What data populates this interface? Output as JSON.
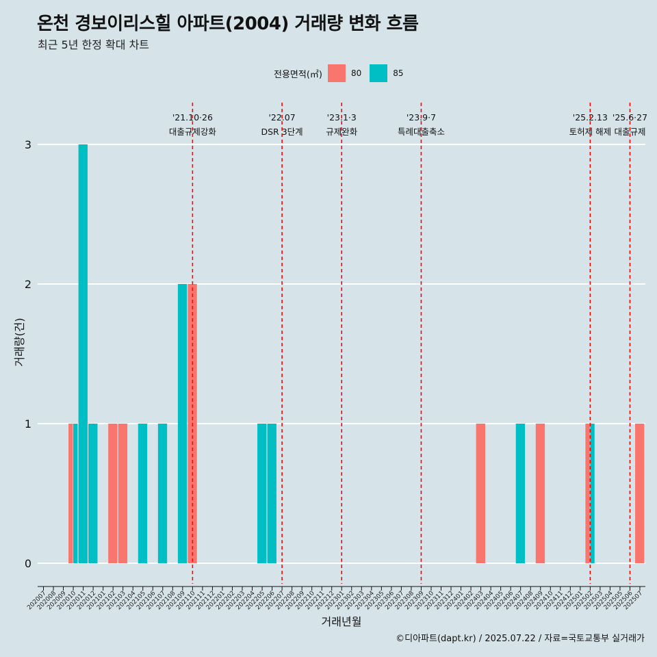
{
  "header": {
    "title": "온천 경보이리스힐 아파트(2004) 거래량 변화 흐름",
    "subtitle": "최근 5년 한정 확대 차트"
  },
  "legend": {
    "title": "전용면적(㎡)",
    "items": [
      {
        "label": "80",
        "color": "#f8766d"
      },
      {
        "label": "85",
        "color": "#00bfc4"
      }
    ]
  },
  "caption": "©디아파트(dapt.kr) / 2025.07.22 / 자료=국토교통부 실거래가",
  "chart_data": {
    "type": "bar",
    "xlabel": "거래년월",
    "ylabel": "거래량(건)",
    "ylim": [
      0,
      3
    ],
    "yticks": [
      0,
      1,
      2,
      3
    ],
    "grid": true,
    "legend_position": "top",
    "categories": [
      "202007",
      "202008",
      "202009",
      "202010",
      "202011",
      "202012",
      "202101",
      "202102",
      "202103",
      "202104",
      "202105",
      "202106",
      "202107",
      "202108",
      "202109",
      "202110",
      "202111",
      "202112",
      "202201",
      "202202",
      "202203",
      "202204",
      "202205",
      "202206",
      "202207",
      "202208",
      "202209",
      "202210",
      "202211",
      "202212",
      "202301",
      "202302",
      "202303",
      "202304",
      "202305",
      "202306",
      "202307",
      "202308",
      "202309",
      "202310",
      "202311",
      "202312",
      "202401",
      "202402",
      "202403",
      "202404",
      "202405",
      "202406",
      "202407",
      "202408",
      "202409",
      "202410",
      "202411",
      "202412",
      "202501",
      "202502",
      "202503",
      "202504",
      "202505",
      "202506",
      "202507"
    ],
    "series": [
      {
        "name": "80",
        "color": "#f8766d",
        "points": [
          {
            "x": "202010",
            "y": 1
          },
          {
            "x": "202102",
            "y": 1
          },
          {
            "x": "202103",
            "y": 1
          },
          {
            "x": "202110",
            "y": 2
          },
          {
            "x": "202403",
            "y": 1
          },
          {
            "x": "202409",
            "y": 1
          },
          {
            "x": "202502",
            "y": 1
          },
          {
            "x": "202507",
            "y": 1
          }
        ]
      },
      {
        "name": "85",
        "color": "#00bfc4",
        "points": [
          {
            "x": "202010",
            "y": 1
          },
          {
            "x": "202011",
            "y": 3
          },
          {
            "x": "202012",
            "y": 1
          },
          {
            "x": "202105",
            "y": 1
          },
          {
            "x": "202107",
            "y": 1
          },
          {
            "x": "202109",
            "y": 2
          },
          {
            "x": "202205",
            "y": 1
          },
          {
            "x": "202206",
            "y": 1
          },
          {
            "x": "202407",
            "y": 1
          },
          {
            "x": "202502",
            "y": 1
          }
        ]
      }
    ],
    "annotations": [
      {
        "x": "202110",
        "date": "'21.10·26",
        "label": "대출규제강화"
      },
      {
        "x": "202207",
        "date": "'22.07",
        "label": "DSR 3단계"
      },
      {
        "x": "202301",
        "date": "'23.1·3",
        "label": "규제완화"
      },
      {
        "x": "202309",
        "date": "'23.9·7",
        "label": "특례대출축소"
      },
      {
        "x": "202502",
        "date": "'25.2.13",
        "label": "토허제 해제"
      },
      {
        "x": "202506",
        "date": "'25.6·27",
        "label": "대출규제"
      }
    ],
    "annotation_color": "#ff0000"
  }
}
